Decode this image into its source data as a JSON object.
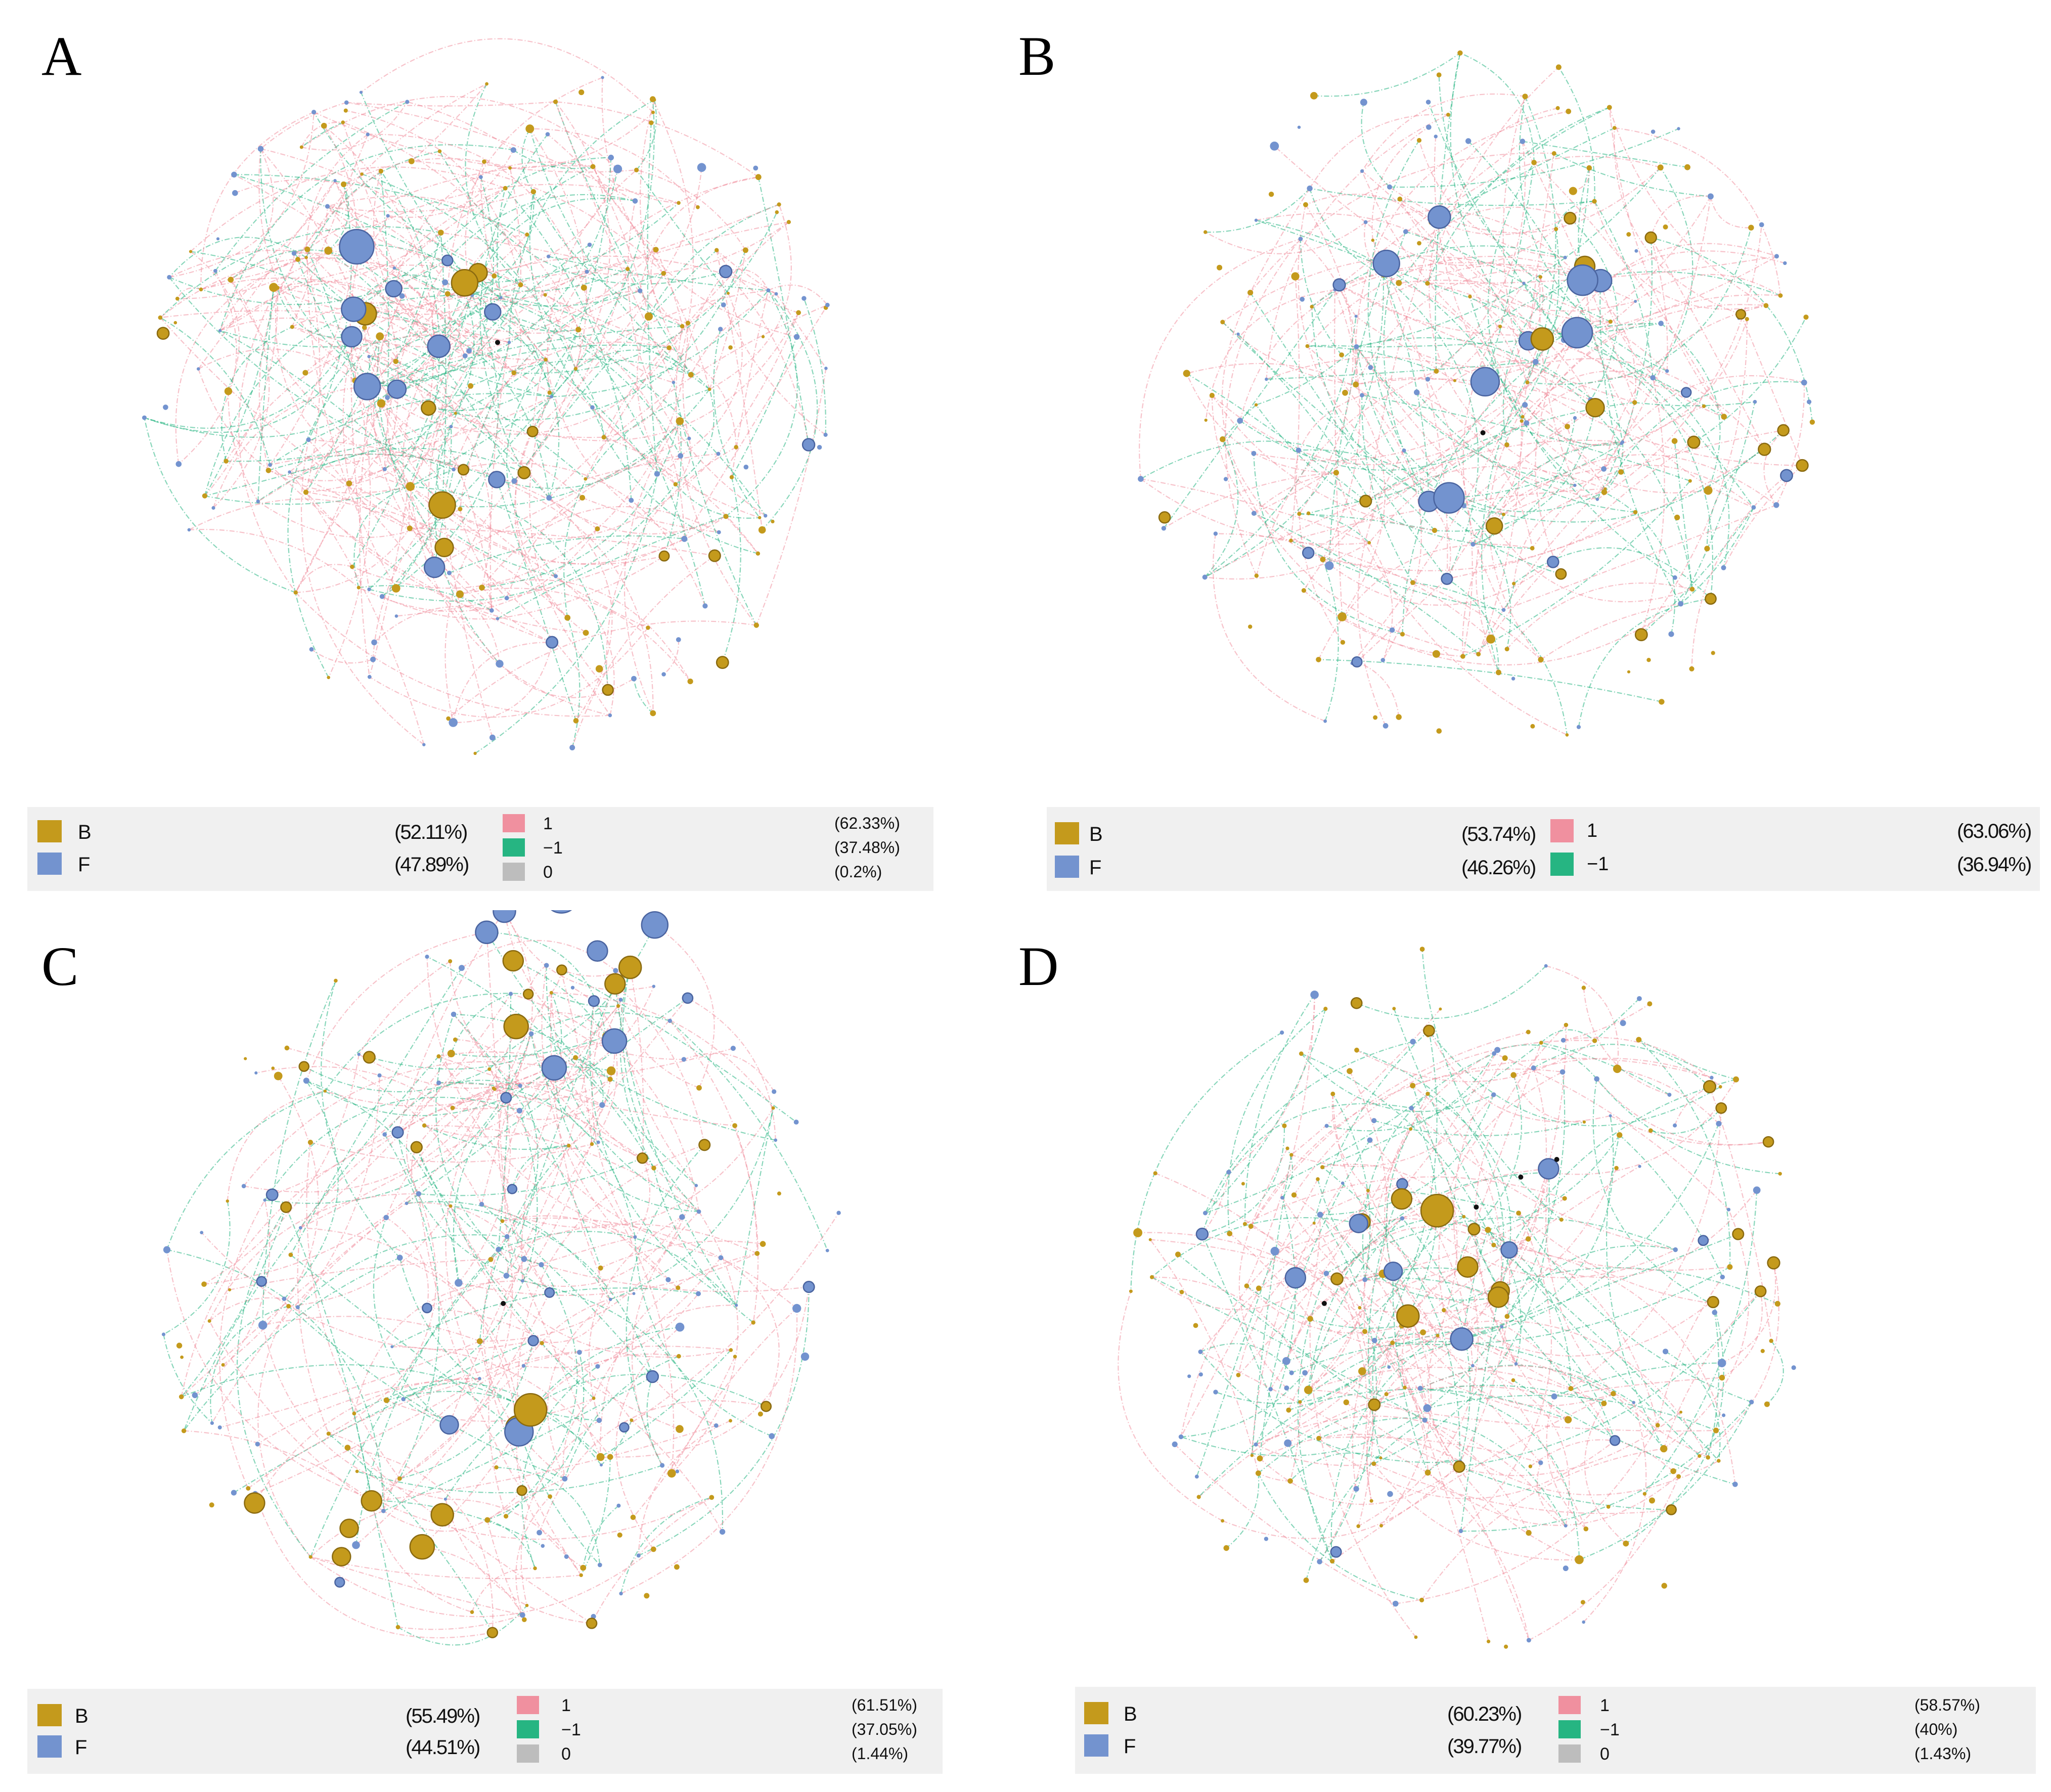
{
  "colors": {
    "B": "#c49a1c",
    "F": "#7393cf",
    "edge_pos": "#f0909f",
    "edge_neg": "#26b582",
    "edge_zero": "#bdbdbd",
    "legend_bg": "#f0f0f0"
  },
  "panels": [
    {
      "id": "A",
      "letter": "A",
      "node_types": [
        {
          "key": "B",
          "label": "B",
          "pct": "(52.11%)"
        },
        {
          "key": "F",
          "label": "F",
          "pct": "(47.89%)"
        }
      ],
      "edge_types": [
        {
          "key": "pos",
          "label": "1",
          "pct": "(62.33%)"
        },
        {
          "key": "neg",
          "label": "−1",
          "pct": "(37.48%)"
        },
        {
          "key": "zero",
          "label": "0",
          "pct": "(0.2%)"
        }
      ]
    },
    {
      "id": "B",
      "letter": "B",
      "node_types": [
        {
          "key": "B",
          "label": "B",
          "pct": "(53.74%)"
        },
        {
          "key": "F",
          "label": "F",
          "pct": "(46.26%)"
        }
      ],
      "edge_types": [
        {
          "key": "pos",
          "label": "1",
          "pct": "(63.06%)"
        },
        {
          "key": "neg",
          "label": "−1",
          "pct": "(36.94%)"
        }
      ]
    },
    {
      "id": "C",
      "letter": "C",
      "node_types": [
        {
          "key": "B",
          "label": "B",
          "pct": "(55.49%)"
        },
        {
          "key": "F",
          "label": "F",
          "pct": "(44.51%)"
        }
      ],
      "edge_types": [
        {
          "key": "pos",
          "label": "1",
          "pct": "(61.51%)"
        },
        {
          "key": "neg",
          "label": "−1",
          "pct": "(37.05%)"
        },
        {
          "key": "zero",
          "label": "0",
          "pct": "(1.44%)"
        }
      ]
    },
    {
      "id": "D",
      "letter": "D",
      "node_types": [
        {
          "key": "B",
          "label": "B",
          "pct": "(60.23%)"
        },
        {
          "key": "F",
          "label": "F",
          "pct": "(39.77%)"
        }
      ],
      "edge_types": [
        {
          "key": "pos",
          "label": "1",
          "pct": "(58.57%)"
        },
        {
          "key": "neg",
          "label": "−1",
          "pct": "(40%)"
        },
        {
          "key": "zero",
          "label": "0",
          "pct": "(1.43%)"
        }
      ]
    }
  ]
}
